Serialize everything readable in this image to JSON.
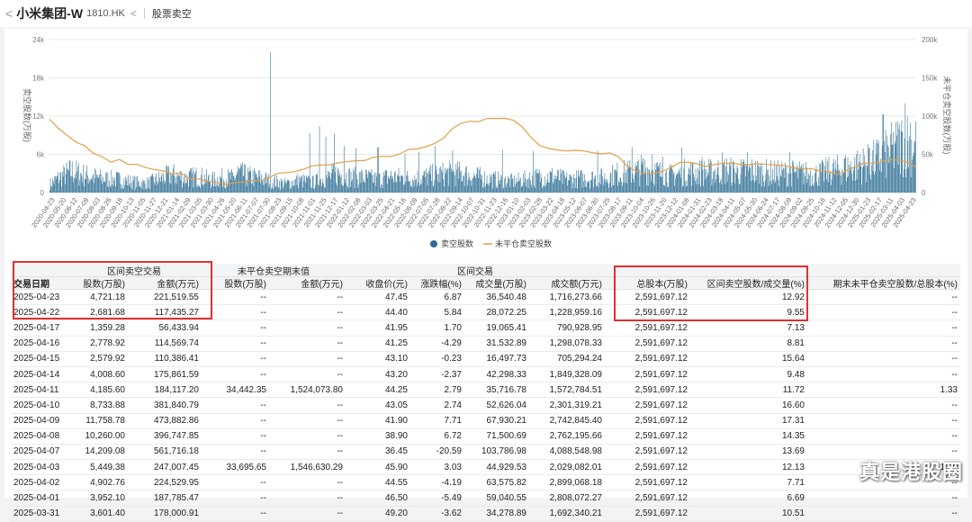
{
  "header": {
    "back_glyph": "<",
    "stock_name": "小米集团-W",
    "stock_code": "1810.HK",
    "back_glyph2": "<",
    "page_label": "股票卖空"
  },
  "chart_data": {
    "type": "bar+line",
    "left_axis": {
      "label": "卖空股数(万股)",
      "ticks": [
        "0",
        "6k",
        "12k",
        "18k",
        "24k"
      ],
      "range": [
        0,
        24000
      ]
    },
    "right_axis": {
      "label": "未平仓卖空股数(万股)",
      "ticks": [
        "0",
        "50k",
        "100k",
        "150k",
        "200k"
      ],
      "range": [
        0,
        200000
      ]
    },
    "x_tick_labels": [
      "2020-04-23",
      "2020-05-20",
      "2020-06-12",
      "2020-07-09",
      "2020-08-03",
      "2020-08-26",
      "2020-09-18",
      "2020-10-13",
      "2020-11-05",
      "2020-11-27",
      "2020-12-21",
      "2021-01-14",
      "2021-02-09",
      "2021-03-05",
      "2021-03-30",
      "2021-04-26",
      "2021-05-20",
      "2021-06-11",
      "2021-07-07",
      "2021-07-30",
      "2021-08-23",
      "2021-09-15",
      "2021-10-08",
      "2021-11-01",
      "2021-11-25",
      "2021-12-17",
      "2022-01-12",
      "2022-02-08",
      "2022-03-03",
      "2022-03-25",
      "2022-04-21",
      "2022-05-16",
      "2022-06-09",
      "2022-07-05",
      "2022-07-28",
      "2022-08-22",
      "2022-09-14",
      "2022-10-07",
      "2022-10-31",
      "2022-11-23",
      "2022-12-16",
      "2023-01-10",
      "2023-02-03",
      "2023-02-28",
      "2023-03-22",
      "2023-04-18",
      "2023-05-12",
      "2023-06-07",
      "2023-06-30",
      "2023-07-25",
      "2023-08-17",
      "2023-09-11",
      "2023-10-04",
      "2023-10-26",
      "2023-11-20",
      "2023-12-12",
      "2024-01-08",
      "2024-01-31",
      "2024-02-23",
      "2024-03-18",
      "2024-04-11",
      "2024-05-07",
      "2024-05-30",
      "2024-06-24",
      "2024-07-17",
      "2024-08-09",
      "2024-09-02",
      "2024-09-25",
      "2024-10-18",
      "2024-11-12",
      "2024-12-05",
      "2024-12-30",
      "2025-01-23",
      "2025-02-17",
      "2025-03-11",
      "2025-04-03",
      "2025-04-23"
    ],
    "bars_series": {
      "name": "卖空股数",
      "color": "#2c6e94",
      "shape": [
        [
          0,
          1500
        ],
        [
          10,
          2600
        ],
        [
          25,
          3800
        ],
        [
          40,
          3100
        ],
        [
          60,
          2500
        ],
        [
          80,
          2300
        ],
        [
          95,
          1900
        ],
        [
          110,
          1600
        ],
        [
          125,
          2400
        ],
        [
          140,
          3200
        ],
        [
          155,
          2600
        ],
        [
          170,
          2900
        ],
        [
          185,
          2200
        ],
        [
          200,
          2700
        ],
        [
          210,
          2500
        ],
        [
          215,
          3600
        ],
        [
          225,
          2900
        ],
        [
          240,
          2600
        ],
        [
          255,
          2000
        ],
        [
          270,
          1600
        ],
        [
          285,
          2200
        ],
        [
          300,
          1800
        ],
        [
          315,
          2600
        ],
        [
          330,
          3400
        ],
        [
          345,
          2700
        ],
        [
          360,
          2700
        ],
        [
          375,
          2300
        ],
        [
          390,
          2900
        ],
        [
          410,
          2500
        ],
        [
          425,
          2700
        ],
        [
          440,
          3100
        ],
        [
          455,
          3400
        ],
        [
          470,
          3400
        ],
        [
          485,
          2900
        ],
        [
          500,
          2500
        ],
        [
          515,
          2200
        ],
        [
          530,
          2000
        ],
        [
          545,
          2400
        ],
        [
          560,
          2800
        ],
        [
          575,
          2900
        ],
        [
          590,
          2300
        ],
        [
          605,
          2500
        ],
        [
          620,
          2600
        ],
        [
          635,
          2700
        ],
        [
          650,
          3400
        ],
        [
          665,
          3600
        ],
        [
          680,
          4300
        ],
        [
          695,
          3600
        ],
        [
          710,
          3000
        ],
        [
          725,
          3600
        ],
        [
          740,
          3600
        ],
        [
          755,
          3600
        ],
        [
          770,
          4100
        ],
        [
          785,
          3600
        ],
        [
          800,
          3900
        ],
        [
          815,
          3600
        ],
        [
          830,
          3400
        ],
        [
          845,
          3500
        ],
        [
          860,
          3400
        ],
        [
          875,
          3200
        ],
        [
          890,
          3800
        ],
        [
          905,
          4200
        ],
        [
          920,
          4700
        ],
        [
          935,
          5200
        ],
        [
          950,
          6200
        ],
        [
          965,
          7800
        ],
        [
          976,
          9000
        ],
        [
          986,
          8800
        ]
      ],
      "spikes": [
        [
          252,
          22000
        ],
        [
          297,
          9300
        ],
        [
          308,
          10400
        ],
        [
          315,
          8800
        ],
        [
          325,
          9200
        ],
        [
          336,
          7300
        ],
        [
          350,
          7000
        ],
        [
          375,
          7100
        ],
        [
          406,
          6100
        ],
        [
          422,
          6400
        ],
        [
          440,
          7300
        ],
        [
          460,
          6600
        ],
        [
          517,
          6700
        ],
        [
          552,
          6500
        ],
        [
          626,
          6600
        ],
        [
          665,
          7100
        ],
        [
          688,
          6000
        ],
        [
          700,
          5600
        ],
        [
          722,
          7100
        ],
        [
          745,
          5600
        ],
        [
          768,
          6300
        ],
        [
          797,
          6400
        ],
        [
          845,
          6300
        ],
        [
          908,
          5400
        ],
        [
          925,
          6000
        ],
        [
          936,
          7000
        ],
        [
          952,
          12300
        ],
        [
          966,
          8100
        ],
        [
          977,
          14000
        ],
        [
          983,
          11000
        ],
        [
          988,
          8000
        ]
      ]
    },
    "line_series": {
      "name": "未平仓卖空股数",
      "color": "#e2a04a",
      "points": [
        [
          0,
          97000
        ],
        [
          10,
          83000
        ],
        [
          20,
          75000
        ],
        [
          30,
          66000
        ],
        [
          40,
          60000
        ],
        [
          50,
          51000
        ],
        [
          60,
          46000
        ],
        [
          70,
          41000
        ],
        [
          80,
          42000
        ],
        [
          90,
          38000
        ],
        [
          100,
          36000
        ],
        [
          110,
          33000
        ],
        [
          120,
          31000
        ],
        [
          130,
          28000
        ],
        [
          140,
          24000
        ],
        [
          150,
          25000
        ],
        [
          160,
          19000
        ],
        [
          170,
          17000
        ],
        [
          180,
          15000
        ],
        [
          190,
          12500
        ],
        [
          200,
          10000
        ],
        [
          210,
          12000
        ],
        [
          220,
          13500
        ],
        [
          230,
          14500
        ],
        [
          240,
          16500
        ],
        [
          250,
          19000
        ],
        [
          260,
          24000
        ],
        [
          270,
          25500
        ],
        [
          280,
          28000
        ],
        [
          290,
          31000
        ],
        [
          300,
          34000
        ],
        [
          310,
          36000
        ],
        [
          320,
          37000
        ],
        [
          330,
          38500
        ],
        [
          340,
          40000
        ],
        [
          350,
          41500
        ],
        [
          360,
          42500
        ],
        [
          370,
          45000
        ],
        [
          380,
          46000
        ],
        [
          390,
          48000
        ],
        [
          400,
          49500
        ],
        [
          410,
          55000
        ],
        [
          420,
          56000
        ],
        [
          430,
          61000
        ],
        [
          440,
          65000
        ],
        [
          450,
          72000
        ],
        [
          460,
          84000
        ],
        [
          470,
          90000
        ],
        [
          480,
          92000
        ],
        [
          490,
          94000
        ],
        [
          500,
          96000
        ],
        [
          510,
          97000
        ],
        [
          520,
          98500
        ],
        [
          530,
          96000
        ],
        [
          540,
          86000
        ],
        [
          550,
          72000
        ],
        [
          560,
          63000
        ],
        [
          570,
          58000
        ],
        [
          580,
          56000
        ],
        [
          590,
          55000
        ],
        [
          600,
          55500
        ],
        [
          610,
          54000
        ],
        [
          620,
          53000
        ],
        [
          630,
          52000
        ],
        [
          640,
          50500
        ],
        [
          650,
          46000
        ],
        [
          660,
          34000
        ],
        [
          670,
          27000
        ],
        [
          680,
          25000
        ],
        [
          690,
          26000
        ],
        [
          700,
          28000
        ],
        [
          710,
          34000
        ],
        [
          720,
          39000
        ],
        [
          730,
          38000
        ],
        [
          740,
          36000
        ],
        [
          750,
          35000
        ],
        [
          760,
          37000
        ],
        [
          770,
          38000
        ],
        [
          780,
          39000
        ],
        [
          790,
          37500
        ],
        [
          800,
          36000
        ],
        [
          810,
          37000
        ],
        [
          820,
          37000
        ],
        [
          830,
          37500
        ],
        [
          840,
          35000
        ],
        [
          850,
          33000
        ],
        [
          860,
          32000
        ],
        [
          870,
          30000
        ],
        [
          880,
          28000
        ],
        [
          890,
          26000
        ],
        [
          900,
          25000
        ],
        [
          910,
          28000
        ],
        [
          920,
          33000
        ],
        [
          930,
          38000
        ],
        [
          940,
          40000
        ],
        [
          950,
          41000
        ],
        [
          960,
          42000
        ],
        [
          970,
          43000
        ],
        [
          980,
          38000
        ],
        [
          990,
          34000
        ]
      ]
    },
    "legend": [
      "卖空股数",
      "未平仓卖空股数"
    ],
    "legend_placement": "bottom-center",
    "grid": "horizontal"
  },
  "table": {
    "group_headers": [
      "交易日期",
      "区间卖空交易",
      "未平仓卖空期末值",
      "区间交易",
      "总股本(万股)",
      "区间卖空股数/成交量(%)",
      "期末未平仓卖空股数/总股本(%)"
    ],
    "sub_headers": [
      "股数(万股)",
      "金额(万元)",
      "股数(万股)",
      "金额(万元)",
      "收盘价(元)",
      "涨跌幅(%)",
      "成交量(万股)",
      "成交额(万元)"
    ],
    "rows": [
      [
        "2025-04-23",
        "4,721.18",
        "221,519.55",
        "--",
        "--",
        "47.45",
        "6.87",
        "36,540.48",
        "1,716,273.66",
        "2,591,697.12",
        "12.92",
        "--"
      ],
      [
        "2025-04-22",
        "2,681.68",
        "117,435.27",
        "--",
        "--",
        "44.40",
        "5.84",
        "28,072.25",
        "1,228,959.16",
        "2,591,697.12",
        "9.55",
        "--"
      ],
      [
        "2025-04-17",
        "1,359.28",
        "56,433.94",
        "--",
        "--",
        "41.95",
        "1.70",
        "19,065.41",
        "790,928.95",
        "2,591,697.12",
        "7.13",
        "--"
      ],
      [
        "2025-04-16",
        "2,778.92",
        "114,569.74",
        "--",
        "--",
        "41.25",
        "-4.29",
        "31,532.89",
        "1,298,078.33",
        "2,591,697.12",
        "8.81",
        "--"
      ],
      [
        "2025-04-15",
        "2,579.92",
        "110,386.41",
        "--",
        "--",
        "43.10",
        "-0.23",
        "16,497.73",
        "705,294.24",
        "2,591,697.12",
        "15.64",
        "--"
      ],
      [
        "2025-04-14",
        "4,008.60",
        "175,861.59",
        "--",
        "--",
        "43.20",
        "-2.37",
        "42,298.33",
        "1,849,328.09",
        "2,591,697.12",
        "9.48",
        "--"
      ],
      [
        "2025-04-11",
        "4,185.60",
        "184,117.20",
        "34,442.35",
        "1,524,073.80",
        "44.25",
        "2.79",
        "35,716.78",
        "1,572,784.51",
        "2,591,697.12",
        "11.72",
        "1.33"
      ],
      [
        "2025-04-10",
        "8,733.88",
        "381,840.79",
        "--",
        "--",
        "43.05",
        "2.74",
        "52,626.04",
        "2,301,319.21",
        "2,591,697.12",
        "16.60",
        "--"
      ],
      [
        "2025-04-09",
        "11,758.78",
        "473,882.86",
        "--",
        "--",
        "41.90",
        "7.71",
        "67,930.21",
        "2,742,845.40",
        "2,591,697.12",
        "17.31",
        "--"
      ],
      [
        "2025-04-08",
        "10,260.00",
        "396,747.85",
        "--",
        "--",
        "38.90",
        "6.72",
        "71,500.69",
        "2,762,195.66",
        "2,591,697.12",
        "14.35",
        "--"
      ],
      [
        "2025-04-07",
        "14,209.08",
        "561,716.18",
        "--",
        "--",
        "36.45",
        "-20.59",
        "103,786.98",
        "4,088,548.98",
        "2,591,697.12",
        "13.69",
        "--"
      ],
      [
        "2025-04-03",
        "5,449.38",
        "247,007.45",
        "33,695.65",
        "1,546,630.29",
        "45.90",
        "3.03",
        "44,929.53",
        "2,029,082.01",
        "2,591,697.12",
        "12.13",
        "1.30"
      ],
      [
        "2025-04-02",
        "4,902.76",
        "224,529.95",
        "--",
        "--",
        "44.55",
        "-4.19",
        "63,575.82",
        "2,899,068.18",
        "2,591,697.12",
        "7.71",
        "--"
      ],
      [
        "2025-04-01",
        "3,952.10",
        "187,785.47",
        "--",
        "--",
        "46.50",
        "-5.49",
        "59,040.55",
        "2,808,072.27",
        "2,591,697.12",
        "6.69",
        "--"
      ],
      [
        "2025-03-31",
        "3,601.40",
        "178,000.91",
        "--",
        "--",
        "49.20",
        "-3.62",
        "34,278.89",
        "1,692,340.21",
        "2,591,697.12",
        "10.51",
        "--"
      ]
    ]
  },
  "watermark": "真是港股圈"
}
